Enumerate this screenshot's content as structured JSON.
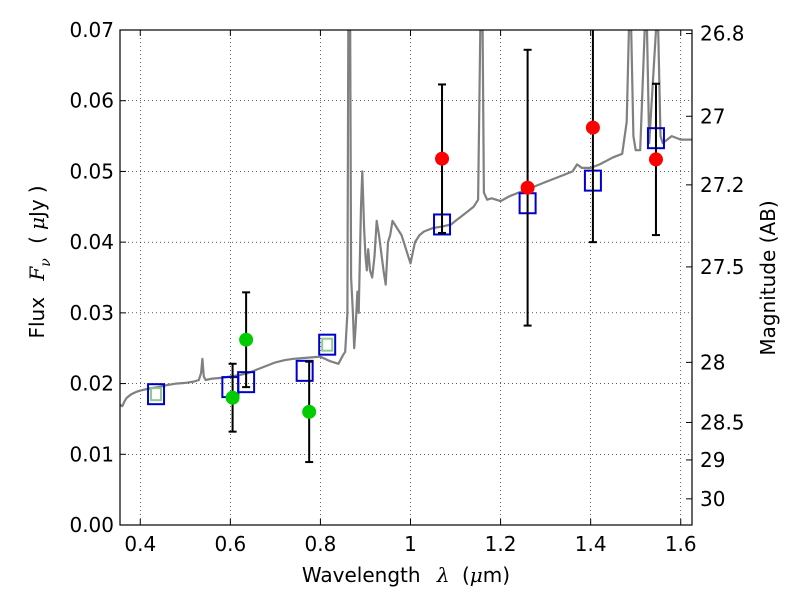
{
  "chart_data": {
    "type": "scatter",
    "xlabel": {
      "prefix": "Wavelength",
      "symbol": "λ",
      "unit_open": "(",
      "unit_mu": "μ",
      "unit_rest": "m)"
    },
    "ylabel": {
      "prefix": "Flux",
      "symbol": "F",
      "sub": "ν",
      "unit_open": "(",
      "unit_mu": "μ",
      "unit_rest": "Jy",
      "unit_close": ")"
    },
    "y2label": "Magnitude (AB)",
    "xlim": [
      0.355,
      1.625
    ],
    "ylim": [
      0.0,
      0.07
    ],
    "grid": true,
    "x_ticks": [
      0.4,
      0.6,
      0.8,
      1.0,
      1.2,
      1.4,
      1.6
    ],
    "x_tick_labels": [
      "0.4",
      "0.6",
      "0.8",
      "1",
      "1.2",
      "1.4",
      "1.6"
    ],
    "y_ticks": [
      0.0,
      0.01,
      0.02,
      0.03,
      0.04,
      0.05,
      0.06,
      0.07
    ],
    "y_tick_labels": [
      "0.00",
      "0.01",
      "0.02",
      "0.03",
      "0.04",
      "0.05",
      "0.06",
      "0.07"
    ],
    "y2_ticks": [
      {
        "label": "26.8",
        "flux": 0.0695
      },
      {
        "label": "27",
        "flux": 0.0578
      },
      {
        "label": "27.2",
        "flux": 0.0481
      },
      {
        "label": "27.5",
        "flux": 0.0365
      },
      {
        "label": "28",
        "flux": 0.023
      },
      {
        "label": "28.5",
        "flux": 0.0145
      },
      {
        "label": "29",
        "flux": 0.0092
      },
      {
        "label": "30",
        "flux": 0.0037
      }
    ],
    "series": [
      {
        "color": "#808080",
        "kind": "line",
        "points": [
          [
            0.355,
            0.017
          ],
          [
            0.36,
            0.0168
          ],
          [
            0.365,
            0.0175
          ],
          [
            0.37,
            0.018
          ],
          [
            0.38,
            0.0185
          ],
          [
            0.39,
            0.0188
          ],
          [
            0.4,
            0.019
          ],
          [
            0.42,
            0.0193
          ],
          [
            0.44,
            0.0195
          ],
          [
            0.46,
            0.0198
          ],
          [
            0.48,
            0.02
          ],
          [
            0.5,
            0.0201
          ],
          [
            0.52,
            0.0203
          ],
          [
            0.53,
            0.0205
          ],
          [
            0.535,
            0.0215
          ],
          [
            0.538,
            0.0235
          ],
          [
            0.541,
            0.021
          ],
          [
            0.545,
            0.0205
          ],
          [
            0.56,
            0.0207
          ],
          [
            0.58,
            0.0208
          ],
          [
            0.6,
            0.021
          ],
          [
            0.62,
            0.0212
          ],
          [
            0.64,
            0.0215
          ],
          [
            0.66,
            0.022
          ],
          [
            0.68,
            0.0225
          ],
          [
            0.7,
            0.023
          ],
          [
            0.72,
            0.0233
          ],
          [
            0.74,
            0.0235
          ],
          [
            0.76,
            0.0236
          ],
          [
            0.78,
            0.0237
          ],
          [
            0.8,
            0.0238
          ],
          [
            0.82,
            0.0232
          ],
          [
            0.84,
            0.0228
          ],
          [
            0.85,
            0.024
          ],
          [
            0.855,
            0.0245
          ],
          [
            0.86,
            0.03
          ],
          [
            0.862,
            0.07
          ],
          [
            0.866,
            0.07
          ],
          [
            0.868,
            0.035
          ],
          [
            0.872,
            0.03
          ],
          [
            0.875,
            0.025
          ],
          [
            0.878,
            0.028
          ],
          [
            0.882,
            0.033
          ],
          [
            0.885,
            0.03
          ],
          [
            0.89,
            0.045
          ],
          [
            0.893,
            0.05
          ],
          [
            0.897,
            0.042
          ],
          [
            0.9,
            0.038
          ],
          [
            0.903,
            0.036
          ],
          [
            0.906,
            0.039
          ],
          [
            0.91,
            0.036
          ],
          [
            0.915,
            0.035
          ],
          [
            0.92,
            0.038
          ],
          [
            0.925,
            0.043
          ],
          [
            0.93,
            0.041
          ],
          [
            0.94,
            0.036
          ],
          [
            0.945,
            0.034
          ],
          [
            0.95,
            0.04
          ],
          [
            0.955,
            0.041
          ],
          [
            0.96,
            0.043
          ],
          [
            0.97,
            0.042
          ],
          [
            0.98,
            0.041
          ],
          [
            0.99,
            0.039
          ],
          [
            1.0,
            0.037
          ],
          [
            1.01,
            0.04
          ],
          [
            1.02,
            0.041
          ],
          [
            1.03,
            0.0415
          ],
          [
            1.05,
            0.042
          ],
          [
            1.07,
            0.0422
          ],
          [
            1.09,
            0.0425
          ],
          [
            1.1,
            0.043
          ],
          [
            1.12,
            0.044
          ],
          [
            1.14,
            0.045
          ],
          [
            1.15,
            0.046
          ],
          [
            1.155,
            0.07
          ],
          [
            1.16,
            0.07
          ],
          [
            1.163,
            0.047
          ],
          [
            1.17,
            0.046
          ],
          [
            1.18,
            0.0462
          ],
          [
            1.2,
            0.0458
          ],
          [
            1.22,
            0.0465
          ],
          [
            1.24,
            0.047
          ],
          [
            1.26,
            0.0475
          ],
          [
            1.28,
            0.048
          ],
          [
            1.3,
            0.0485
          ],
          [
            1.32,
            0.049
          ],
          [
            1.34,
            0.0495
          ],
          [
            1.36,
            0.05
          ],
          [
            1.37,
            0.051
          ],
          [
            1.38,
            0.0505
          ],
          [
            1.4,
            0.0505
          ],
          [
            1.42,
            0.051
          ],
          [
            1.45,
            0.052
          ],
          [
            1.47,
            0.0525
          ],
          [
            1.48,
            0.057
          ],
          [
            1.485,
            0.07
          ],
          [
            1.49,
            0.07
          ],
          [
            1.495,
            0.055
          ],
          [
            1.5,
            0.053
          ],
          [
            1.51,
            0.053
          ],
          [
            1.52,
            0.07
          ],
          [
            1.525,
            0.07
          ],
          [
            1.53,
            0.054
          ],
          [
            1.545,
            0.07
          ],
          [
            1.55,
            0.07
          ],
          [
            1.555,
            0.055
          ],
          [
            1.56,
            0.054
          ],
          [
            1.57,
            0.0545
          ],
          [
            1.58,
            0.055
          ],
          [
            1.6,
            0.0545
          ],
          [
            1.625,
            0.0545
          ]
        ]
      },
      {
        "color": "#0000cc",
        "kind": "open-square",
        "points": [
          [
            0.435,
            0.0185
          ],
          [
            0.6,
            0.0195
          ],
          [
            0.635,
            0.0202
          ],
          [
            0.765,
            0.0218
          ],
          [
            0.815,
            0.0255
          ],
          [
            1.07,
            0.0425
          ],
          [
            1.26,
            0.0455
          ],
          [
            1.405,
            0.0487
          ],
          [
            1.545,
            0.0547
          ]
        ]
      },
      {
        "color": "#00cc00",
        "kind": "filled-circle",
        "points": [
          [
            0.605,
            0.018,
            0.0048
          ],
          [
            0.635,
            0.0262,
            0.0067
          ],
          [
            0.775,
            0.016,
            0.0071
          ]
        ]
      },
      {
        "color": "#ff0000",
        "kind": "filled-circle",
        "points": [
          [
            1.07,
            0.0518,
            0.0105
          ],
          [
            1.26,
            0.0477,
            0.0195
          ],
          [
            1.405,
            0.0562,
            0.0162
          ],
          [
            1.545,
            0.0517,
            0.0107
          ]
        ]
      },
      {
        "color": "#8fc98f",
        "kind": "small-square",
        "points": [
          [
            0.435,
            0.0185
          ],
          [
            0.815,
            0.0255
          ]
        ]
      }
    ]
  }
}
